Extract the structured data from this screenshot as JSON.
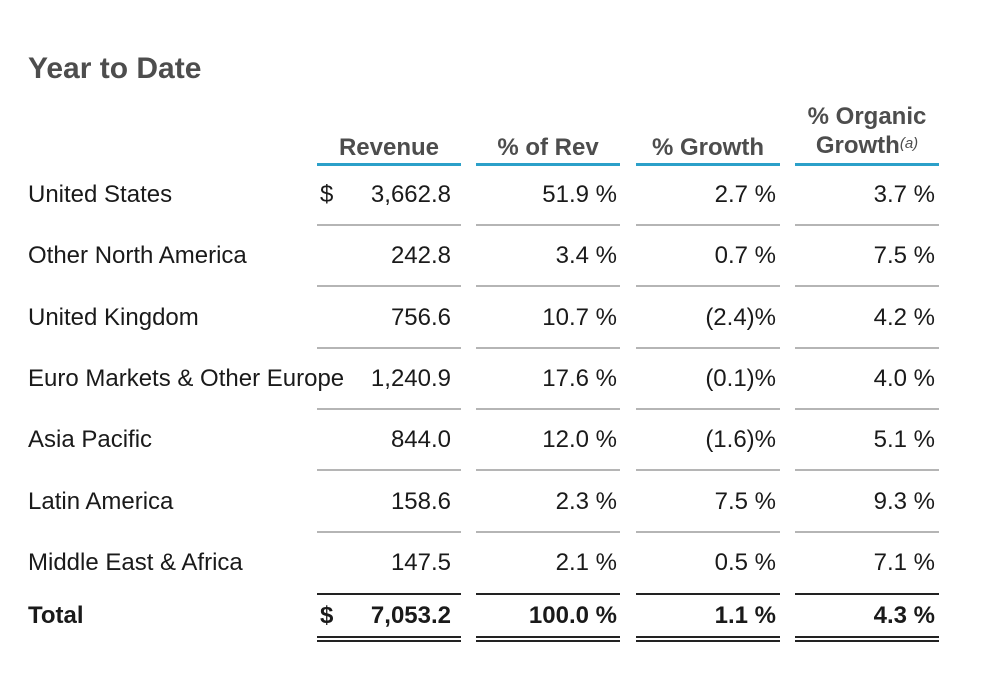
{
  "title": "Year to Date",
  "headers": {
    "revenue": "Revenue",
    "pct_rev": "% of Rev",
    "growth": "% Growth",
    "organic_line1": "% Organic",
    "organic_line2": "Growth",
    "organic_note": "(a)"
  },
  "currency_symbol": "$",
  "rows": [
    {
      "label": "United States",
      "revenue": "3,662.8",
      "pct_rev": "51.9 %",
      "growth": "2.7 %",
      "organic": "3.7 %"
    },
    {
      "label": "Other North America",
      "revenue": "242.8",
      "pct_rev": "3.4 %",
      "growth": "0.7 %",
      "organic": "7.5 %"
    },
    {
      "label": "United Kingdom",
      "revenue": "756.6",
      "pct_rev": "10.7 %",
      "growth": "(2.4)%",
      "organic": "4.2 %"
    },
    {
      "label": "Euro Markets & Other Europe",
      "revenue": "1,240.9",
      "pct_rev": "17.6 %",
      "growth": "(0.1)%",
      "organic": "4.0 %"
    },
    {
      "label": "Asia Pacific",
      "revenue": "844.0",
      "pct_rev": "12.0 %",
      "growth": "(1.6)%",
      "organic": "5.1 %"
    },
    {
      "label": "Latin America",
      "revenue": "158.6",
      "pct_rev": "2.3 %",
      "growth": "7.5 %",
      "organic": "9.3 %"
    },
    {
      "label": "Middle East & Africa",
      "revenue": "147.5",
      "pct_rev": "2.1 %",
      "growth": "0.5 %",
      "organic": "7.1 %"
    }
  ],
  "total": {
    "label": "Total",
    "revenue": "7,053.2",
    "pct_rev": "100.0 %",
    "growth": "1.1 %",
    "organic": "4.3 %"
  },
  "colors": {
    "header_rule": "#2ba0c9",
    "heading_text": "#4d4d4d"
  }
}
